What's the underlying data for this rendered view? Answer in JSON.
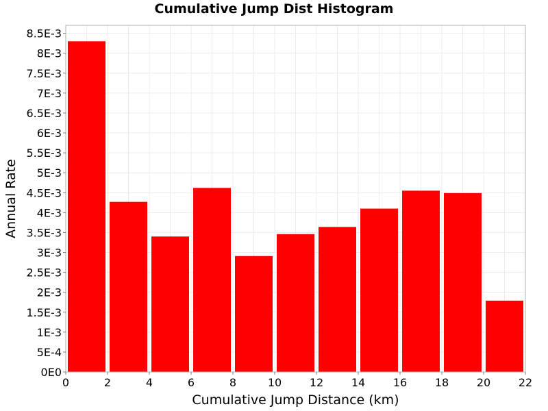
{
  "chart_data": {
    "type": "bar",
    "title": "Cumulative Jump Dist Histogram",
    "xlabel": "Cumulative Jump Distance (km)",
    "ylabel": "Annual Rate",
    "xlim": [
      0,
      22
    ],
    "ylim": [
      0,
      0.0087
    ],
    "grid": true,
    "bar_color": "#ff0000",
    "bars": [
      {
        "x_start": 0,
        "x_end": 2,
        "value": 0.0083
      },
      {
        "x_start": 2,
        "x_end": 4,
        "value": 0.00427
      },
      {
        "x_start": 4,
        "x_end": 6,
        "value": 0.0034
      },
      {
        "x_start": 6,
        "x_end": 8,
        "value": 0.00462
      },
      {
        "x_start": 8,
        "x_end": 10,
        "value": 0.00291
      },
      {
        "x_start": 10,
        "x_end": 12,
        "value": 0.00346
      },
      {
        "x_start": 12,
        "x_end": 14,
        "value": 0.00364
      },
      {
        "x_start": 14,
        "x_end": 16,
        "value": 0.0041
      },
      {
        "x_start": 16,
        "x_end": 18,
        "value": 0.00455
      },
      {
        "x_start": 18,
        "x_end": 20,
        "value": 0.00449
      },
      {
        "x_start": 20,
        "x_end": 22,
        "value": 0.00179
      }
    ],
    "x_ticks": [
      {
        "value": 0,
        "label": "0"
      },
      {
        "value": 2,
        "label": "2"
      },
      {
        "value": 4,
        "label": "4"
      },
      {
        "value": 6,
        "label": "6"
      },
      {
        "value": 8,
        "label": "8"
      },
      {
        "value": 10,
        "label": "10"
      },
      {
        "value": 12,
        "label": "12"
      },
      {
        "value": 14,
        "label": "14"
      },
      {
        "value": 16,
        "label": "16"
      },
      {
        "value": 18,
        "label": "18"
      },
      {
        "value": 20,
        "label": "20"
      },
      {
        "value": 22,
        "label": "22"
      }
    ],
    "y_ticks": [
      {
        "value": 0,
        "label": "0E0"
      },
      {
        "value": 0.0005,
        "label": "5E-4"
      },
      {
        "value": 0.001,
        "label": "1E-3"
      },
      {
        "value": 0.0015,
        "label": "1.5E-3"
      },
      {
        "value": 0.002,
        "label": "2E-3"
      },
      {
        "value": 0.0025,
        "label": "2.5E-3"
      },
      {
        "value": 0.003,
        "label": "3E-3"
      },
      {
        "value": 0.0035,
        "label": "3.5E-3"
      },
      {
        "value": 0.004,
        "label": "4E-3"
      },
      {
        "value": 0.0045,
        "label": "4.5E-3"
      },
      {
        "value": 0.005,
        "label": "5E-3"
      },
      {
        "value": 0.0055,
        "label": "5.5E-3"
      },
      {
        "value": 0.006,
        "label": "6E-3"
      },
      {
        "value": 0.0065,
        "label": "6.5E-3"
      },
      {
        "value": 0.007,
        "label": "7E-3"
      },
      {
        "value": 0.0075,
        "label": "7.5E-3"
      },
      {
        "value": 0.008,
        "label": "8E-3"
      },
      {
        "value": 0.0085,
        "label": "8.5E-3"
      }
    ]
  }
}
